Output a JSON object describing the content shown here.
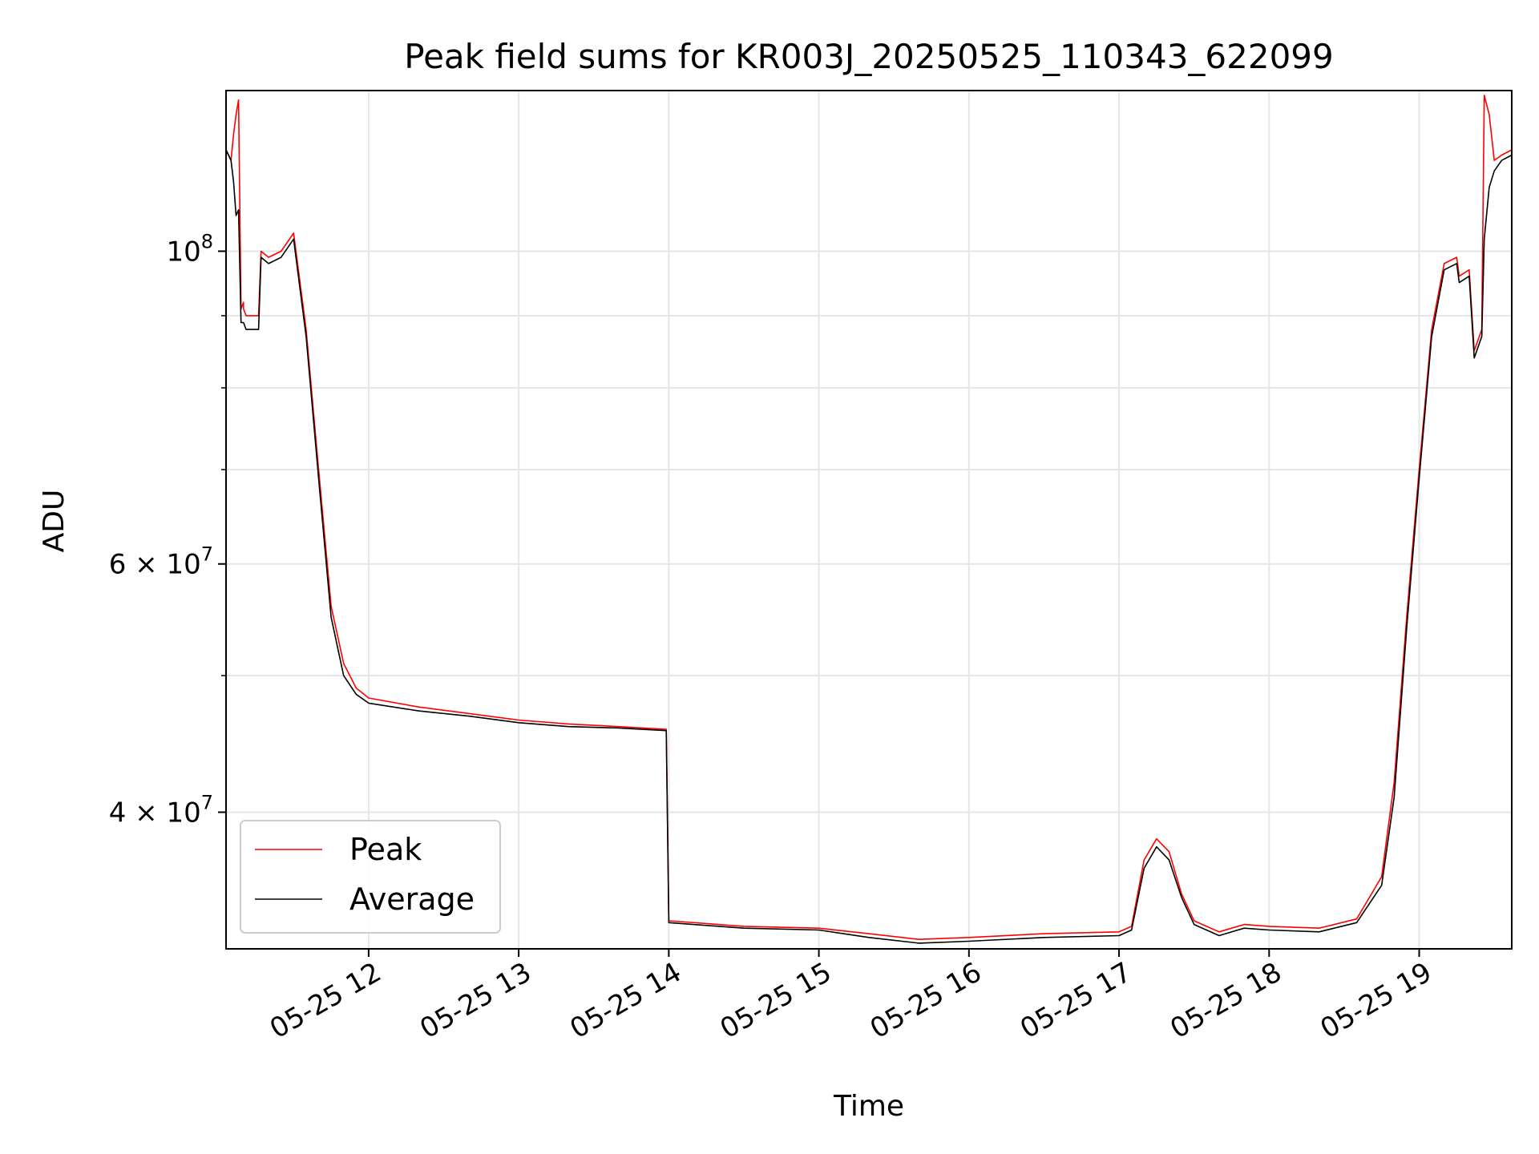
{
  "chart_data": {
    "type": "line",
    "title": "Peak field sums for KR003J_20250525_110343_622099",
    "xlabel": "Time",
    "ylabel": "ADU",
    "x_ticks": [
      {
        "value": "2025-05-25 12:00",
        "label": "05-25 12"
      },
      {
        "value": "2025-05-25 13:00",
        "label": "05-25 13"
      },
      {
        "value": "2025-05-25 14:00",
        "label": "05-25 14"
      },
      {
        "value": "2025-05-25 15:00",
        "label": "05-25 15"
      },
      {
        "value": "2025-05-25 16:00",
        "label": "05-25 16"
      },
      {
        "value": "2025-05-25 17:00",
        "label": "05-25 17"
      },
      {
        "value": "2025-05-25 18:00",
        "label": "05-25 18"
      },
      {
        "value": "2025-05-25 19:00",
        "label": "05-25 19"
      }
    ],
    "y_ticks": [
      {
        "value": 40000000,
        "label_base": "4 × 10",
        "label_exp": "7"
      },
      {
        "value": 60000000,
        "label_base": "6 × 10",
        "label_exp": "7"
      },
      {
        "value": 100000000,
        "label_base": "10",
        "label_exp": "8"
      }
    ],
    "y_minor_ticks": [
      30000000,
      40000000,
      50000000,
      60000000,
      70000000,
      80000000,
      90000000,
      100000000
    ],
    "yscale": "log",
    "xlim": [
      "2025-05-25 11:03",
      "2025-05-25 19:37"
    ],
    "ylim": [
      32000000,
      130000000
    ],
    "grid": true,
    "legend_position": "lower-left",
    "colors": {
      "Peak": "#ff0000",
      "Average": "#000000",
      "grid": "#e6e6e6"
    },
    "series": [
      {
        "name": "Peak",
        "x": [
          "2025-05-25 11:03",
          "2025-05-25 11:05",
          "2025-05-25 11:06",
          "2025-05-25 11:07",
          "2025-05-25 11:08",
          "2025-05-25 11:09",
          "2025-05-25 11:10",
          "2025-05-25 11:10",
          "2025-05-25 11:11",
          "2025-05-25 11:16",
          "2025-05-25 11:17",
          "2025-05-25 11:20",
          "2025-05-25 11:25",
          "2025-05-25 11:30",
          "2025-05-25 11:35",
          "2025-05-25 11:40",
          "2025-05-25 11:45",
          "2025-05-25 11:50",
          "2025-05-25 11:55",
          "2025-05-25 12:00",
          "2025-05-25 12:20",
          "2025-05-25 12:40",
          "2025-05-25 13:00",
          "2025-05-25 13:20",
          "2025-05-25 13:40",
          "2025-05-25 13:59",
          "2025-05-25 14:00",
          "2025-05-25 14:30",
          "2025-05-25 15:00",
          "2025-05-25 15:20",
          "2025-05-25 15:40",
          "2025-05-25 16:00",
          "2025-05-25 16:30",
          "2025-05-25 17:00",
          "2025-05-25 17:05",
          "2025-05-25 17:10",
          "2025-05-25 17:15",
          "2025-05-25 17:20",
          "2025-05-25 17:25",
          "2025-05-25 17:30",
          "2025-05-25 17:40",
          "2025-05-25 17:50",
          "2025-05-25 18:00",
          "2025-05-25 18:20",
          "2025-05-25 18:35",
          "2025-05-25 18:45",
          "2025-05-25 18:50",
          "2025-05-25 18:55",
          "2025-05-25 19:00",
          "2025-05-25 19:05",
          "2025-05-25 19:10",
          "2025-05-25 19:15",
          "2025-05-25 19:16",
          "2025-05-25 19:20",
          "2025-05-25 19:22",
          "2025-05-25 19:25",
          "2025-05-25 19:26",
          "2025-05-25 19:28",
          "2025-05-25 19:30",
          "2025-05-25 19:33",
          "2025-05-25 19:37"
        ],
        "y": [
          118000000,
          116000000,
          121000000,
          125000000,
          128000000,
          91000000,
          92000000,
          91000000,
          90000000,
          90000000,
          100000000,
          99000000,
          100000000,
          103000000,
          88000000,
          70000000,
          56000000,
          51000000,
          49000000,
          48200000,
          47500000,
          47000000,
          46500000,
          46200000,
          46000000,
          45800000,
          33500000,
          33200000,
          33100000,
          32800000,
          32500000,
          32600000,
          32800000,
          32900000,
          33200000,
          37000000,
          38300000,
          37500000,
          35000000,
          33500000,
          32900000,
          33300000,
          33200000,
          33100000,
          33600000,
          36000000,
          42000000,
          55000000,
          70000000,
          88000000,
          98000000,
          99000000,
          96000000,
          97000000,
          85000000,
          88000000,
          129000000,
          125000000,
          116000000,
          117000000,
          118000000
        ]
      },
      {
        "name": "Average",
        "x": [
          "2025-05-25 11:03",
          "2025-05-25 11:05",
          "2025-05-25 11:06",
          "2025-05-25 11:07",
          "2025-05-25 11:08",
          "2025-05-25 11:09",
          "2025-05-25 11:10",
          "2025-05-25 11:10",
          "2025-05-25 11:11",
          "2025-05-25 11:16",
          "2025-05-25 11:17",
          "2025-05-25 11:20",
          "2025-05-25 11:25",
          "2025-05-25 11:30",
          "2025-05-25 11:35",
          "2025-05-25 11:40",
          "2025-05-25 11:45",
          "2025-05-25 11:50",
          "2025-05-25 11:55",
          "2025-05-25 12:00",
          "2025-05-25 12:20",
          "2025-05-25 12:40",
          "2025-05-25 13:00",
          "2025-05-25 13:20",
          "2025-05-25 13:40",
          "2025-05-25 13:59",
          "2025-05-25 14:00",
          "2025-05-25 14:30",
          "2025-05-25 15:00",
          "2025-05-25 15:20",
          "2025-05-25 15:40",
          "2025-05-25 16:00",
          "2025-05-25 16:30",
          "2025-05-25 17:00",
          "2025-05-25 17:05",
          "2025-05-25 17:10",
          "2025-05-25 17:15",
          "2025-05-25 17:20",
          "2025-05-25 17:25",
          "2025-05-25 17:30",
          "2025-05-25 17:40",
          "2025-05-25 17:50",
          "2025-05-25 18:00",
          "2025-05-25 18:20",
          "2025-05-25 18:35",
          "2025-05-25 18:45",
          "2025-05-25 18:50",
          "2025-05-25 18:55",
          "2025-05-25 19:00",
          "2025-05-25 19:05",
          "2025-05-25 19:10",
          "2025-05-25 19:15",
          "2025-05-25 19:16",
          "2025-05-25 19:20",
          "2025-05-25 19:22",
          "2025-05-25 19:25",
          "2025-05-25 19:26",
          "2025-05-25 19:28",
          "2025-05-25 19:30",
          "2025-05-25 19:33",
          "2025-05-25 19:37"
        ],
        "y": [
          118000000,
          116000000,
          112000000,
          106000000,
          107000000,
          89000000,
          89000000,
          89000000,
          88000000,
          88000000,
          99000000,
          98000000,
          99000000,
          102000000,
          87000000,
          69000000,
          55000000,
          50000000,
          48500000,
          47800000,
          47200000,
          46800000,
          46300000,
          46000000,
          45900000,
          45700000,
          33400000,
          33100000,
          33000000,
          32600000,
          32300000,
          32400000,
          32600000,
          32700000,
          33000000,
          36500000,
          37800000,
          37000000,
          34800000,
          33300000,
          32700000,
          33100000,
          33000000,
          32900000,
          33400000,
          35500000,
          41000000,
          54000000,
          69000000,
          87000000,
          97000000,
          98000000,
          95000000,
          96000000,
          84000000,
          87000000,
          102000000,
          111000000,
          114000000,
          116000000,
          117000000
        ]
      }
    ]
  }
}
